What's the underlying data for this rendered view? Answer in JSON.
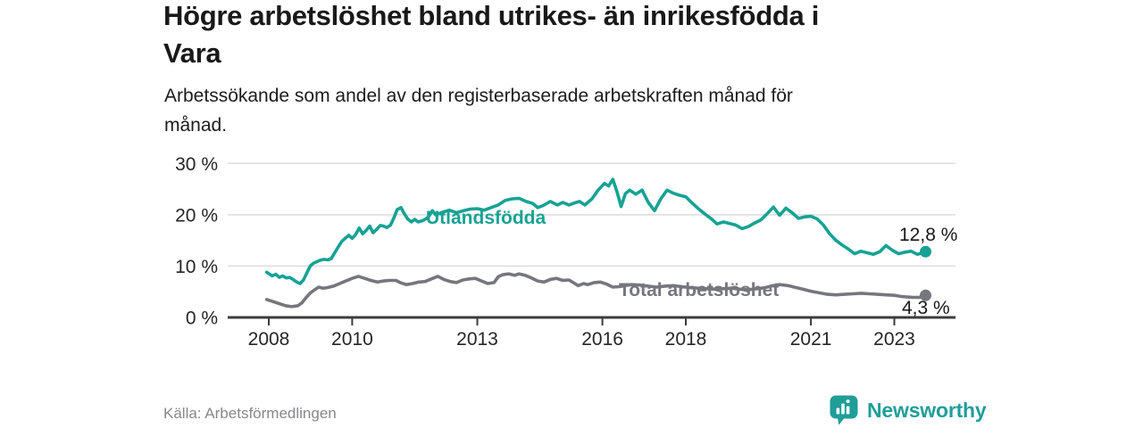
{
  "header": {
    "title_lines": [
      "Högre arbetslöshet bland utrikes- än inrikesfödda i",
      "Vara"
    ],
    "subtitle_lines": [
      "Arbetssökande som andel av den registerbaserade arbetskraften månad för",
      "månad."
    ]
  },
  "chart_data": {
    "type": "line",
    "unit": "%",
    "grid": "horizontal",
    "x_axis": {
      "ticks": [
        {
          "value": 2008,
          "label": "2008"
        },
        {
          "value": 2010,
          "label": "2010"
        },
        {
          "value": 2013,
          "label": "2013"
        },
        {
          "value": 2016,
          "label": "2016"
        },
        {
          "value": 2018,
          "label": "2018"
        },
        {
          "value": 2021,
          "label": "2021"
        },
        {
          "value": 2023,
          "label": "2023"
        }
      ]
    },
    "y_axis": {
      "range": [
        0,
        30
      ],
      "ticks": [
        {
          "value": 0,
          "label": "0 %"
        },
        {
          "value": 10,
          "label": "10 %"
        },
        {
          "value": 20,
          "label": "20 %"
        },
        {
          "value": 30,
          "label": "30 %"
        }
      ]
    },
    "series": [
      {
        "name": "Utlandsfödda",
        "color": "#17a294",
        "end_label": "12,8 %",
        "end_value": 12.8,
        "points": [
          [
            2007.95,
            8.8
          ],
          [
            2008.08,
            8.1
          ],
          [
            2008.17,
            8.4
          ],
          [
            2008.25,
            7.8
          ],
          [
            2008.33,
            8.1
          ],
          [
            2008.42,
            7.7
          ],
          [
            2008.5,
            7.8
          ],
          [
            2008.58,
            7.4
          ],
          [
            2008.67,
            6.9
          ],
          [
            2008.75,
            6.6
          ],
          [
            2008.83,
            7.3
          ],
          [
            2008.92,
            8.8
          ],
          [
            2009.0,
            10.1
          ],
          [
            2009.08,
            10.6
          ],
          [
            2009.17,
            10.9
          ],
          [
            2009.25,
            11.2
          ],
          [
            2009.33,
            11.3
          ],
          [
            2009.42,
            11.2
          ],
          [
            2009.5,
            11.5
          ],
          [
            2009.58,
            12.6
          ],
          [
            2009.67,
            13.8
          ],
          [
            2009.75,
            14.8
          ],
          [
            2009.83,
            15.4
          ],
          [
            2009.92,
            16.0
          ],
          [
            2010.0,
            15.4
          ],
          [
            2010.08,
            16.1
          ],
          [
            2010.17,
            17.4
          ],
          [
            2010.25,
            16.3
          ],
          [
            2010.33,
            16.9
          ],
          [
            2010.42,
            17.8
          ],
          [
            2010.5,
            16.5
          ],
          [
            2010.58,
            17.1
          ],
          [
            2010.67,
            17.9
          ],
          [
            2010.75,
            17.8
          ],
          [
            2010.83,
            17.5
          ],
          [
            2010.92,
            18.0
          ],
          [
            2011.0,
            19.4
          ],
          [
            2011.08,
            21.0
          ],
          [
            2011.17,
            21.4
          ],
          [
            2011.25,
            20.2
          ],
          [
            2011.33,
            19.2
          ],
          [
            2011.42,
            18.6
          ],
          [
            2011.5,
            19.1
          ],
          [
            2011.58,
            18.6
          ],
          [
            2011.67,
            18.8
          ],
          [
            2011.75,
            19.1
          ],
          [
            2011.83,
            19.6
          ],
          [
            2011.92,
            20.8
          ],
          [
            2012.0,
            20.0
          ],
          [
            2012.17,
            20.5
          ],
          [
            2012.33,
            20.9
          ],
          [
            2012.5,
            20.4
          ],
          [
            2012.67,
            20.8
          ],
          [
            2012.83,
            21.1
          ],
          [
            2013.0,
            21.2
          ],
          [
            2013.17,
            20.9
          ],
          [
            2013.33,
            21.4
          ],
          [
            2013.5,
            21.9
          ],
          [
            2013.67,
            22.8
          ],
          [
            2013.83,
            23.1
          ],
          [
            2014.0,
            23.2
          ],
          [
            2014.17,
            22.6
          ],
          [
            2014.33,
            22.2
          ],
          [
            2014.45,
            21.4
          ],
          [
            2014.58,
            21.8
          ],
          [
            2014.75,
            22.6
          ],
          [
            2014.92,
            21.9
          ],
          [
            2015.05,
            22.4
          ],
          [
            2015.2,
            21.9
          ],
          [
            2015.33,
            22.3
          ],
          [
            2015.45,
            22.6
          ],
          [
            2015.58,
            21.9
          ],
          [
            2015.75,
            23.1
          ],
          [
            2015.9,
            24.8
          ],
          [
            2016.05,
            26.1
          ],
          [
            2016.15,
            25.6
          ],
          [
            2016.25,
            26.9
          ],
          [
            2016.35,
            24.5
          ],
          [
            2016.45,
            21.6
          ],
          [
            2016.55,
            24.1
          ],
          [
            2016.65,
            24.8
          ],
          [
            2016.8,
            24.0
          ],
          [
            2016.95,
            24.8
          ],
          [
            2017.1,
            22.4
          ],
          [
            2017.25,
            20.8
          ],
          [
            2017.4,
            23.1
          ],
          [
            2017.55,
            24.8
          ],
          [
            2017.7,
            24.2
          ],
          [
            2017.85,
            23.8
          ],
          [
            2018.0,
            23.5
          ],
          [
            2018.15,
            22.3
          ],
          [
            2018.3,
            21.2
          ],
          [
            2018.45,
            20.2
          ],
          [
            2018.6,
            19.3
          ],
          [
            2018.75,
            18.2
          ],
          [
            2018.9,
            18.6
          ],
          [
            2019.05,
            18.3
          ],
          [
            2019.2,
            18.0
          ],
          [
            2019.35,
            17.3
          ],
          [
            2019.5,
            17.7
          ],
          [
            2019.65,
            18.4
          ],
          [
            2019.8,
            19.0
          ],
          [
            2019.95,
            20.2
          ],
          [
            2020.1,
            21.5
          ],
          [
            2020.25,
            19.9
          ],
          [
            2020.4,
            21.3
          ],
          [
            2020.55,
            20.4
          ],
          [
            2020.7,
            19.3
          ],
          [
            2020.85,
            19.6
          ],
          [
            2021.0,
            19.7
          ],
          [
            2021.15,
            19.2
          ],
          [
            2021.3,
            18.0
          ],
          [
            2021.45,
            16.3
          ],
          [
            2021.6,
            15.0
          ],
          [
            2021.75,
            14.1
          ],
          [
            2021.9,
            13.3
          ],
          [
            2022.05,
            12.4
          ],
          [
            2022.2,
            12.9
          ],
          [
            2022.35,
            12.6
          ],
          [
            2022.5,
            12.3
          ],
          [
            2022.65,
            12.8
          ],
          [
            2022.8,
            14.0
          ],
          [
            2022.95,
            13.1
          ],
          [
            2023.1,
            12.4
          ],
          [
            2023.25,
            12.7
          ],
          [
            2023.4,
            12.9
          ],
          [
            2023.55,
            12.3
          ],
          [
            2023.65,
            12.5
          ],
          [
            2023.75,
            12.8
          ]
        ]
      },
      {
        "name": "Total arbetslöshet",
        "color": "#76767e",
        "end_label": "4,3 %",
        "end_value": 4.3,
        "points": [
          [
            2007.95,
            3.5
          ],
          [
            2008.1,
            3.1
          ],
          [
            2008.25,
            2.7
          ],
          [
            2008.4,
            2.3
          ],
          [
            2008.55,
            2.1
          ],
          [
            2008.7,
            2.3
          ],
          [
            2008.8,
            2.9
          ],
          [
            2008.9,
            3.9
          ],
          [
            2009.0,
            4.8
          ],
          [
            2009.1,
            5.4
          ],
          [
            2009.2,
            5.9
          ],
          [
            2009.3,
            5.7
          ],
          [
            2009.4,
            5.8
          ],
          [
            2009.55,
            6.1
          ],
          [
            2009.7,
            6.6
          ],
          [
            2009.85,
            7.1
          ],
          [
            2010.0,
            7.6
          ],
          [
            2010.15,
            8.0
          ],
          [
            2010.3,
            7.6
          ],
          [
            2010.45,
            7.2
          ],
          [
            2010.6,
            6.9
          ],
          [
            2010.75,
            7.1
          ],
          [
            2010.9,
            7.2
          ],
          [
            2011.05,
            7.2
          ],
          [
            2011.15,
            6.8
          ],
          [
            2011.3,
            6.4
          ],
          [
            2011.45,
            6.6
          ],
          [
            2011.6,
            6.9
          ],
          [
            2011.75,
            7.0
          ],
          [
            2011.9,
            7.5
          ],
          [
            2012.05,
            8.0
          ],
          [
            2012.2,
            7.4
          ],
          [
            2012.35,
            7.0
          ],
          [
            2012.5,
            6.8
          ],
          [
            2012.65,
            7.3
          ],
          [
            2012.8,
            7.5
          ],
          [
            2012.95,
            7.6
          ],
          [
            2013.1,
            7.1
          ],
          [
            2013.25,
            6.6
          ],
          [
            2013.4,
            6.8
          ],
          [
            2013.5,
            7.9
          ],
          [
            2013.6,
            8.3
          ],
          [
            2013.75,
            8.5
          ],
          [
            2013.9,
            8.2
          ],
          [
            2014.0,
            8.5
          ],
          [
            2014.15,
            8.2
          ],
          [
            2014.3,
            7.7
          ],
          [
            2014.45,
            7.1
          ],
          [
            2014.6,
            6.9
          ],
          [
            2014.75,
            7.4
          ],
          [
            2014.9,
            7.6
          ],
          [
            2015.05,
            7.2
          ],
          [
            2015.2,
            7.3
          ],
          [
            2015.3,
            6.8
          ],
          [
            2015.42,
            6.2
          ],
          [
            2015.55,
            6.6
          ],
          [
            2015.65,
            6.4
          ],
          [
            2015.8,
            6.8
          ],
          [
            2015.95,
            6.9
          ],
          [
            2016.1,
            6.5
          ],
          [
            2016.25,
            5.9
          ],
          [
            2016.4,
            6.0
          ],
          [
            2016.55,
            6.2
          ],
          [
            2016.7,
            6.4
          ],
          [
            2016.9,
            6.3
          ],
          [
            2017.1,
            6.1
          ],
          [
            2017.3,
            5.9
          ],
          [
            2017.5,
            6.1
          ],
          [
            2017.7,
            6.2
          ],
          [
            2017.9,
            6.0
          ],
          [
            2018.1,
            5.8
          ],
          [
            2018.3,
            5.7
          ],
          [
            2018.5,
            5.6
          ],
          [
            2018.7,
            5.5
          ],
          [
            2018.9,
            5.6
          ],
          [
            2019.1,
            5.7
          ],
          [
            2019.3,
            5.5
          ],
          [
            2019.5,
            5.4
          ],
          [
            2019.7,
            5.6
          ],
          [
            2019.9,
            5.8
          ],
          [
            2020.1,
            6.2
          ],
          [
            2020.25,
            6.4
          ],
          [
            2020.45,
            6.2
          ],
          [
            2020.6,
            5.9
          ],
          [
            2020.8,
            5.5
          ],
          [
            2021.0,
            5.1
          ],
          [
            2021.2,
            4.8
          ],
          [
            2021.4,
            4.5
          ],
          [
            2021.6,
            4.4
          ],
          [
            2021.8,
            4.5
          ],
          [
            2022.0,
            4.6
          ],
          [
            2022.2,
            4.7
          ],
          [
            2022.4,
            4.6
          ],
          [
            2022.6,
            4.5
          ],
          [
            2022.8,
            4.4
          ],
          [
            2023.0,
            4.3
          ],
          [
            2023.15,
            4.1
          ],
          [
            2023.3,
            4.0
          ],
          [
            2023.45,
            3.9
          ],
          [
            2023.6,
            3.9
          ],
          [
            2023.75,
            4.3
          ]
        ]
      }
    ]
  },
  "footer": {
    "source": "Källa: Arbetsförmedlingen",
    "brand": "Newsworthy"
  },
  "colors": {
    "accent_teal": "#17a294",
    "series_gray": "#76767e",
    "gridline": "#dcdcdc",
    "axis": "#3c3c3c",
    "text_dark": "#191919",
    "text_muted": "#87878d",
    "brand_teal": "#1f9e99"
  }
}
